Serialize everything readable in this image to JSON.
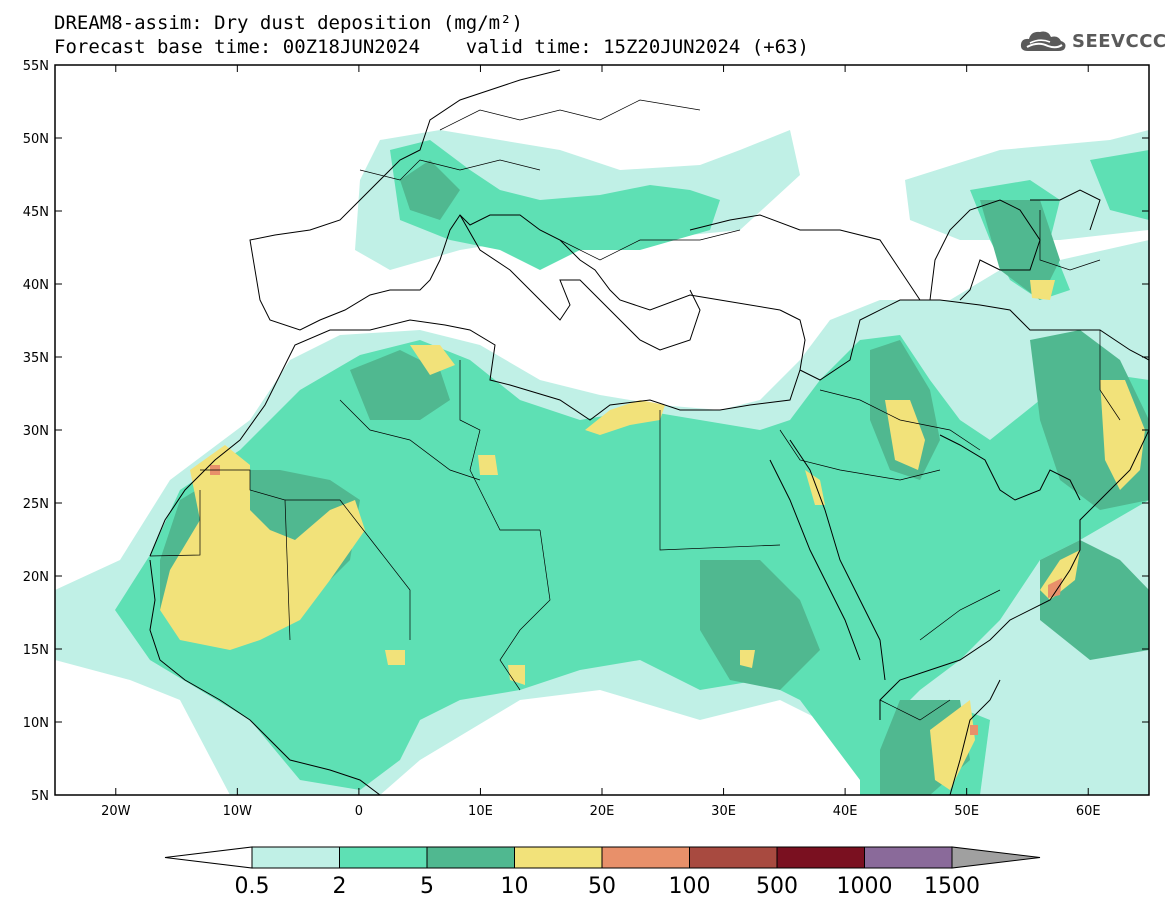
{
  "header": {
    "title_line1": "DREAM8-assim: Dry dust deposition (mg/m²)",
    "title_line2": "Forecast base time: 00Z18JUN2024    valid time: 15Z20JUN2024 (+63)",
    "logo_text": "SEEVCCC",
    "logo_icon": "cloud-icon"
  },
  "map": {
    "lon_range": [
      -25,
      65
    ],
    "lat_range": [
      5,
      55
    ],
    "lon_ticks": [
      "20W",
      "10W",
      "0",
      "10E",
      "20E",
      "30E",
      "40E",
      "50E",
      "60E"
    ],
    "lat_ticks": [
      "55N",
      "50N",
      "45N",
      "40N",
      "35N",
      "30N",
      "25N",
      "20N",
      "15N",
      "10N",
      "5N"
    ]
  },
  "colorbar": {
    "labels": [
      "0.5",
      "2",
      "5",
      "10",
      "50",
      "100",
      "500",
      "1000",
      "1500"
    ],
    "colors": [
      "#c0f0e6",
      "#5ee0b4",
      "#50b890",
      "#f2e27a",
      "#e8906a",
      "#a84a40",
      "#7a1020",
      "#8a6a9a"
    ],
    "under_color": "#ffffff",
    "over_color": "#a0a0a0"
  },
  "colors": {
    "c1": "#c0f0e6",
    "c2": "#5ee0b4",
    "c3": "#50b890",
    "c4": "#f2e27a",
    "c5": "#e8906a",
    "coast": "#000000"
  }
}
